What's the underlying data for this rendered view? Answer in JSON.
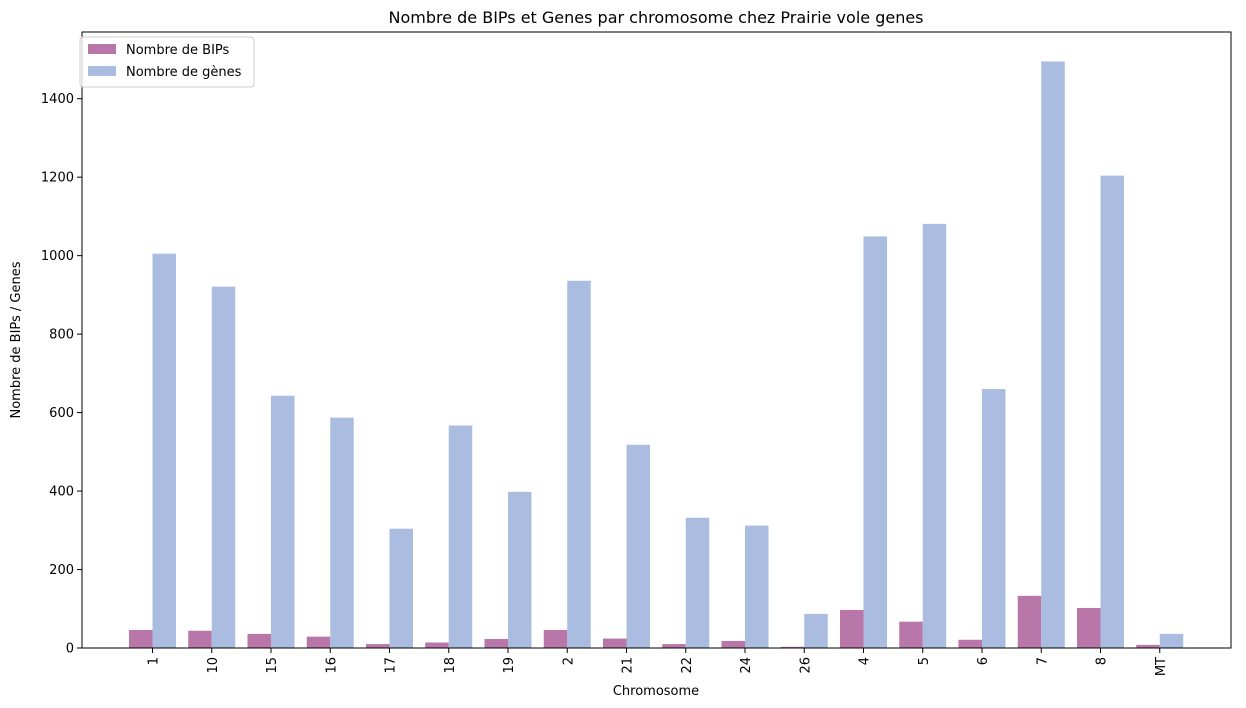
{
  "chart_data": {
    "type": "bar",
    "title": "Nombre de BIPs et Genes par chromosome chez Prairie vole genes",
    "xlabel": "Chromosome",
    "ylabel": "Nombre de BIPs / Genes",
    "ylim": [
      0,
      1570
    ],
    "yticks": [
      0,
      200,
      400,
      600,
      800,
      1000,
      1200,
      1400
    ],
    "categories": [
      "1",
      "10",
      "15",
      "16",
      "17",
      "18",
      "19",
      "2",
      "21",
      "22",
      "24",
      "26",
      "4",
      "5",
      "6",
      "7",
      "8",
      "MT"
    ],
    "series": [
      {
        "name": "Nombre de BIPs",
        "color": "#b877a8",
        "values": [
          46,
          44,
          36,
          29,
          10,
          14,
          23,
          46,
          24,
          10,
          18,
          3,
          97,
          67,
          21,
          133,
          102,
          8
        ]
      },
      {
        "name": "Nombre de gènes",
        "color": "#aabde0",
        "values": [
          1005,
          921,
          643,
          587,
          304,
          567,
          398,
          936,
          518,
          332,
          312,
          87,
          1049,
          1081,
          660,
          1495,
          1204,
          36
        ]
      }
    ],
    "legend": "upper-left",
    "grid": false
  }
}
